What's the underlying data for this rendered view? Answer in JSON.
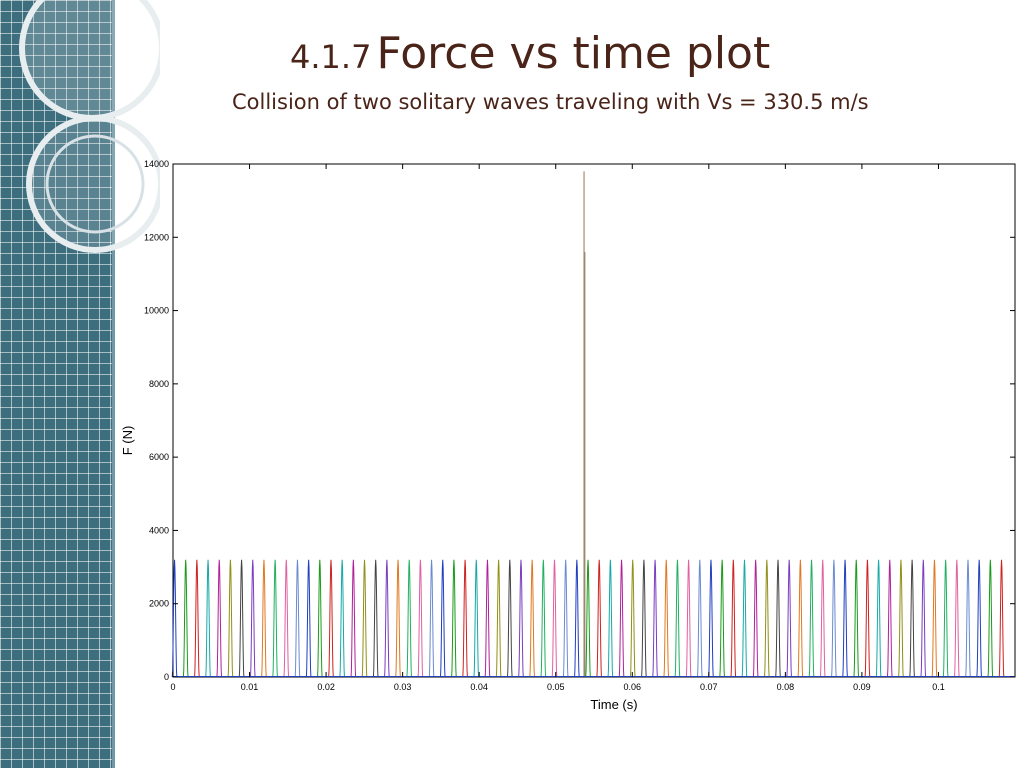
{
  "slide": {
    "title_number": "4.1.7",
    "title_text": "Force vs time plot",
    "subtitle": "Collision of two solitary waves traveling with Vs = 330.5 m/s"
  },
  "chart_data": {
    "type": "line",
    "xlabel": "Time (s)",
    "ylabel": "F (N)",
    "xlim": [
      0,
      0.11
    ],
    "ylim": [
      0,
      14000
    ],
    "x_ticks": [
      0,
      0.01,
      0.02,
      0.03,
      0.04,
      0.05,
      0.06,
      0.07,
      0.08,
      0.09,
      0.1
    ],
    "x_tick_labels": [
      "0",
      "0.01",
      "0.02",
      "0.03",
      "0.04",
      "0.05",
      "0.06",
      "0.07",
      "0.08",
      "0.09",
      "0.1"
    ],
    "y_ticks": [
      0,
      2000,
      4000,
      6000,
      8000,
      10000,
      12000,
      14000
    ],
    "y_tick_labels": [
      "0",
      "2000",
      "4000",
      "6000",
      "8000",
      "10000",
      "12000",
      "14000"
    ],
    "grid": false,
    "pulse_train": {
      "start_time": 0.0002,
      "period": 0.00146,
      "end_time": 0.1095,
      "peak_force": 3200,
      "pulse_width": 0.0006
    },
    "collision_spike": {
      "time": 0.0537,
      "peak_force": 13800,
      "secondary_peak_force": 11600,
      "color": "#b8a488"
    },
    "series_colors": [
      "#1f3fbf",
      "#1a9a1a",
      "#d02020",
      "#17a8a8",
      "#b0209a",
      "#909018",
      "#444444",
      "#7a3cc0",
      "#e07820",
      "#20b060",
      "#e060a0",
      "#6a8ad0"
    ]
  }
}
